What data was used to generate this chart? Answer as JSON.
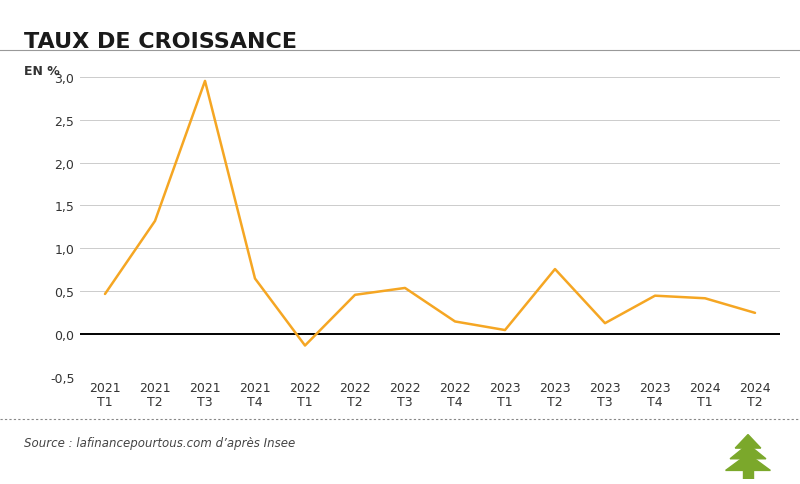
{
  "title": "TAUX DE CROISSANCE",
  "ylabel": "EN %",
  "line_color": "#F5A623",
  "background_color": "#FFFFFF",
  "grid_color": "#CCCCCC",
  "zero_line_color": "#000000",
  "source_text": "Source : lafinancepourtous.com d’après Insee",
  "x_labels": [
    "2021\nT1",
    "2021\nT2",
    "2021\nT3",
    "2021\nT4",
    "2022\nT1",
    "2022\nT2",
    "2022\nT3",
    "2022\nT4",
    "2023\nT1",
    "2023\nT2",
    "2023\nT3",
    "2023\nT4",
    "2024\nT1",
    "2024\nT2"
  ],
  "y_values": [
    0.47,
    1.32,
    2.95,
    0.65,
    -0.13,
    0.46,
    0.54,
    0.15,
    0.05,
    0.76,
    0.13,
    0.45,
    0.42,
    0.25
  ],
  "ylim": [
    -0.5,
    3.0
  ],
  "yticks": [
    -0.5,
    0.0,
    0.5,
    1.0,
    1.5,
    2.0,
    2.5,
    3.0
  ],
  "ytick_labels": [
    "-0,5",
    "0,0",
    "0,5",
    "1,0",
    "1,5",
    "2,0",
    "2,5",
    "3,0"
  ],
  "line_width": 1.8,
  "title_fontsize": 16,
  "axis_label_fontsize": 9,
  "tick_fontsize": 9,
  "source_fontsize": 8.5,
  "tree_color": "#7BA82B"
}
